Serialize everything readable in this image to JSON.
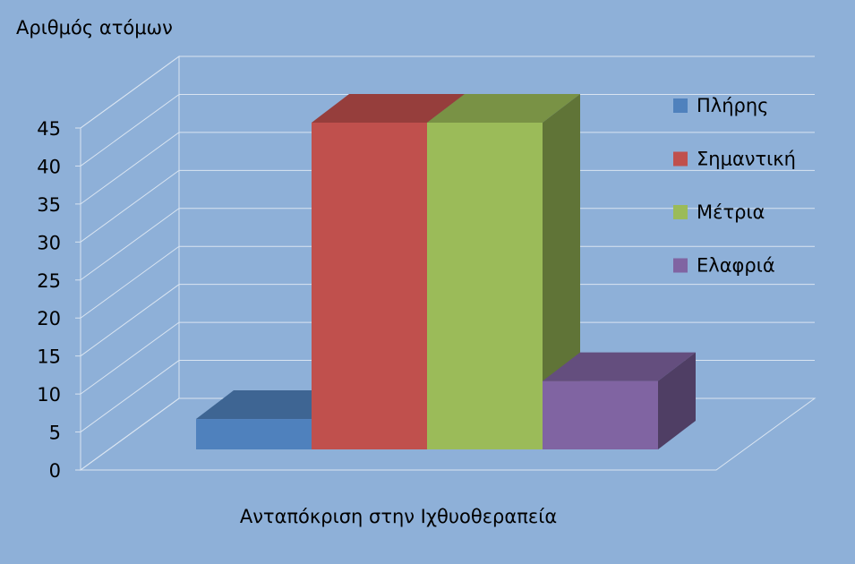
{
  "chart_data": {
    "type": "bar",
    "y_axis_title": "Αριθμός ατόμων",
    "categories": [
      "Ανταπόκριση στην Ιχθυοθεραπεία"
    ],
    "series": [
      {
        "name": "Πλήρης",
        "color": "#4f81bd",
        "values": [
          4
        ]
      },
      {
        "name": "Σημαντική",
        "color": "#c0504d",
        "values": [
          43
        ]
      },
      {
        "name": "Μέτρια",
        "color": "#9bbb59",
        "values": [
          43
        ]
      },
      {
        "name": "Ελαφριά",
        "color": "#8064a2",
        "values": [
          9
        ]
      }
    ],
    "ylim": [
      0,
      45
    ],
    "yticks": [
      0,
      5,
      10,
      15,
      20,
      25,
      30,
      35,
      40,
      45
    ],
    "grid": true,
    "legend": "right"
  }
}
